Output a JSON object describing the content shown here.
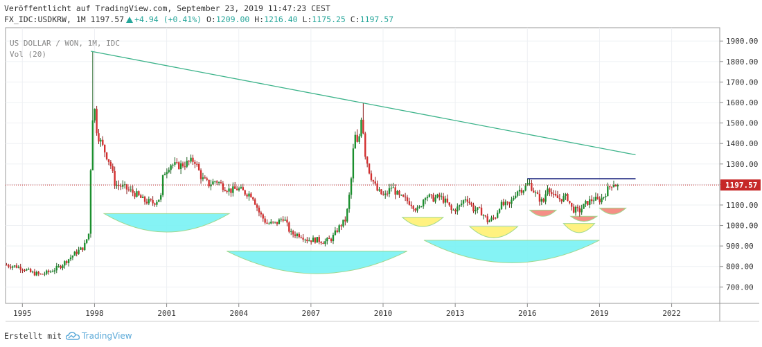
{
  "header": {
    "published": "Veröffentlicht auf TradingView.com, September 23, 2019 11:47:23 CEST",
    "symbol": "FX_IDC:USDKRW, 1M",
    "last": "1197.57",
    "change": "+4.94 (+0.41%)",
    "open_label": "O:",
    "open": "1209.00",
    "high_label": "H:",
    "high": "1216.40",
    "low_label": "L:",
    "low": "1175.25",
    "close_label": "C:",
    "close": "1197.57"
  },
  "legend": {
    "title": "US DOLLAR / WON, 1M, IDC",
    "volume": "Vol (20)"
  },
  "footer": {
    "created_with": "Erstellt mit",
    "brand": "TradingView"
  },
  "colors": {
    "up": "#26a69a",
    "down": "#ef5350",
    "candle_body_up": "#1b8f2e",
    "candle_body_down": "#d32f2f",
    "trendline": "#3cb38a",
    "resistance": "#1a237e",
    "price_line": "#c62828",
    "arc_cyan": "#7ff3f5",
    "arc_yellow": "#fff27a",
    "arc_red": "#f58a80"
  },
  "chart_data": {
    "type": "candlestick",
    "title": "US DOLLAR / WON, 1M, IDC",
    "y_axis_position": "right",
    "ylim": [
      620,
      1965
    ],
    "xlim": [
      1994.3,
      2024
    ],
    "grid": true,
    "y_ticks": [
      "700.00",
      "800.00",
      "900.00",
      "1000.00",
      "1100.00",
      "1200.00",
      "1300.00",
      "1400.00",
      "1500.00",
      "1600.00",
      "1700.00",
      "1800.00",
      "1900.00"
    ],
    "y_tick_values": [
      700,
      800,
      900,
      1000,
      1100,
      1200,
      1300,
      1400,
      1500,
      1600,
      1700,
      1800,
      1900
    ],
    "x_ticks": [
      "1995",
      "1998",
      "2001",
      "2004",
      "2007",
      "2010",
      "2013",
      "2016",
      "2019",
      "2022"
    ],
    "x_tick_values": [
      1995,
      1998,
      2001,
      2004,
      2007,
      2010,
      2013,
      2016,
      2019,
      2022
    ],
    "last_price": 1197.57,
    "last_price_label": "1197.57",
    "price_path": [
      [
        1994.3,
        808
      ],
      [
        1994.8,
        800
      ],
      [
        1995.1,
        790
      ],
      [
        1995.4,
        770
      ],
      [
        1995.8,
        760
      ],
      [
        1996.2,
        775
      ],
      [
        1996.6,
        800
      ],
      [
        1996.9,
        830
      ],
      [
        1997.3,
        870
      ],
      [
        1997.6,
        895
      ],
      [
        1997.8,
        960
      ],
      [
        1997.85,
        1150
      ],
      [
        1997.9,
        1340
      ],
      [
        1998.0,
        1620
      ],
      [
        1998.15,
        1450
      ],
      [
        1998.4,
        1380
      ],
      [
        1998.7,
        1300
      ],
      [
        1998.9,
        1200
      ],
      [
        1999.2,
        1190
      ],
      [
        1999.5,
        1170
      ],
      [
        1999.8,
        1150
      ],
      [
        2000.1,
        1120
      ],
      [
        2000.5,
        1110
      ],
      [
        2000.8,
        1140
      ],
      [
        2000.9,
        1250
      ],
      [
        2001.2,
        1300
      ],
      [
        2001.5,
        1290
      ],
      [
        2001.8,
        1300
      ],
      [
        2002.2,
        1320
      ],
      [
        2002.5,
        1230
      ],
      [
        2002.8,
        1200
      ],
      [
        2003.1,
        1220
      ],
      [
        2003.4,
        1190
      ],
      [
        2003.7,
        1170
      ],
      [
        2004.0,
        1180
      ],
      [
        2004.3,
        1160
      ],
      [
        2004.6,
        1150
      ],
      [
        2004.9,
        1060
      ],
      [
        2005.2,
        1010
      ],
      [
        2005.6,
        1010
      ],
      [
        2005.9,
        1040
      ],
      [
        2006.2,
        960
      ],
      [
        2006.6,
        955
      ],
      [
        2006.9,
        930
      ],
      [
        2007.3,
        930
      ],
      [
        2007.6,
        920
      ],
      [
        2007.9,
        935
      ],
      [
        2008.2,
        990
      ],
      [
        2008.5,
        1030
      ],
      [
        2008.7,
        1200
      ],
      [
        2008.85,
        1450
      ],
      [
        2009.0,
        1380
      ],
      [
        2009.15,
        1550
      ],
      [
        2009.3,
        1350
      ],
      [
        2009.5,
        1250
      ],
      [
        2009.8,
        1170
      ],
      [
        2010.1,
        1140
      ],
      [
        2010.4,
        1190
      ],
      [
        2010.7,
        1140
      ],
      [
        2010.9,
        1130
      ],
      [
        2011.2,
        1110
      ],
      [
        2011.5,
        1070
      ],
      [
        2011.8,
        1150
      ],
      [
        2012.1,
        1130
      ],
      [
        2012.4,
        1140
      ],
      [
        2012.7,
        1110
      ],
      [
        2012.9,
        1070
      ],
      [
        2013.2,
        1090
      ],
      [
        2013.5,
        1140
      ],
      [
        2013.8,
        1080
      ],
      [
        2014.1,
        1070
      ],
      [
        2014.4,
        1020
      ],
      [
        2014.7,
        1040
      ],
      [
        2014.9,
        1100
      ],
      [
        2015.3,
        1100
      ],
      [
        2015.6,
        1170
      ],
      [
        2015.9,
        1180
      ],
      [
        2016.1,
        1210
      ],
      [
        2016.4,
        1150
      ],
      [
        2016.7,
        1110
      ],
      [
        2016.9,
        1200
      ],
      [
        2017.1,
        1140
      ],
      [
        2017.4,
        1130
      ],
      [
        2017.7,
        1140
      ],
      [
        2017.9,
        1080
      ],
      [
        2018.2,
        1070
      ],
      [
        2018.5,
        1110
      ],
      [
        2018.8,
        1130
      ],
      [
        2019.0,
        1120
      ],
      [
        2019.2,
        1140
      ],
      [
        2019.4,
        1180
      ],
      [
        2019.6,
        1210
      ],
      [
        2019.72,
        1197.57
      ]
    ],
    "peaks": [
      [
        1997.9,
        1850
      ],
      [
        2009.1,
        1597
      ]
    ],
    "trendline": [
      [
        1997.85,
        1850
      ],
      [
        2020.5,
        1345
      ]
    ],
    "resistance": {
      "level": 1228,
      "x": [
        2016.0,
        2020.5
      ]
    },
    "arcs": [
      {
        "x": [
          1998.4,
          2003.6
        ],
        "y": 1058,
        "depth": 90,
        "color": "cyan"
      },
      {
        "x": [
          2003.5,
          2011.0
        ],
        "y": 875,
        "depth": 110,
        "color": "cyan"
      },
      {
        "x": [
          2011.7,
          2019.0
        ],
        "y": 928,
        "depth": 110,
        "color": "cyan"
      },
      {
        "x": [
          2010.8,
          2012.5
        ],
        "y": 1040,
        "depth": 45,
        "color": "yellow"
      },
      {
        "x": [
          2013.6,
          2015.6
        ],
        "y": 995,
        "depth": 55,
        "color": "yellow"
      },
      {
        "x": [
          2017.5,
          2018.8
        ],
        "y": 1010,
        "depth": 45,
        "color": "yellow"
      },
      {
        "x": [
          2016.1,
          2017.2
        ],
        "y": 1075,
        "depth": 30,
        "color": "red"
      },
      {
        "x": [
          2017.8,
          2018.9
        ],
        "y": 1045,
        "depth": 25,
        "color": "red"
      },
      {
        "x": [
          2019.0,
          2020.1
        ],
        "y": 1085,
        "depth": 30,
        "color": "red"
      }
    ]
  }
}
